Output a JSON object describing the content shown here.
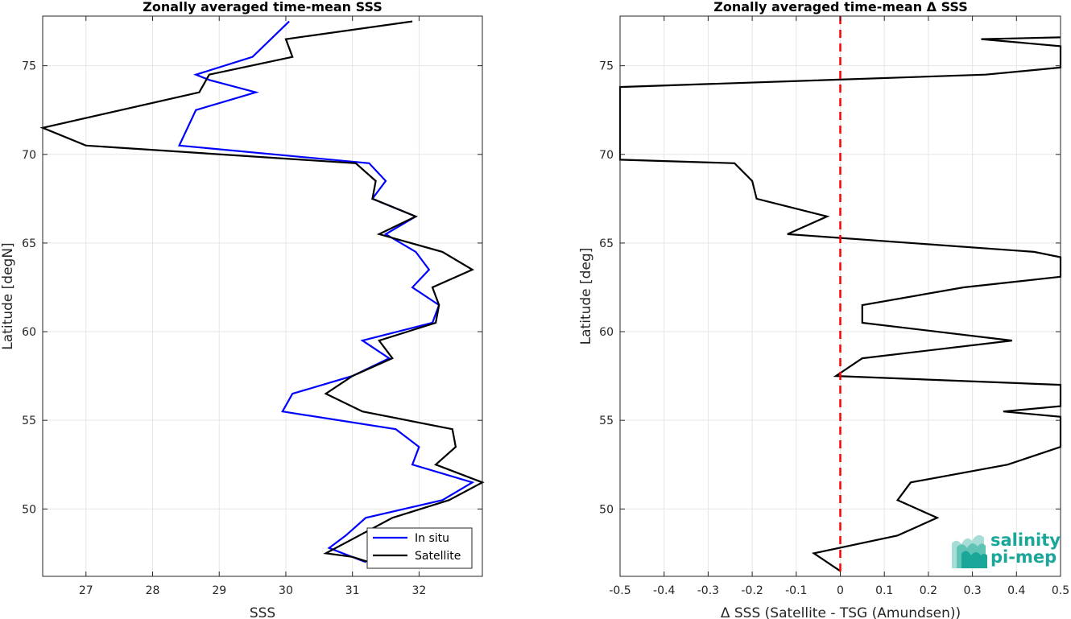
{
  "chart_data": [
    {
      "type": "line",
      "title": "Zonally averaged time-mean SSS",
      "xlabel": "SSS",
      "ylabel": "Latitude [degN]",
      "xlim": [
        26.35,
        32.95
      ],
      "ylim": [
        46.2,
        77.8
      ],
      "xticks": [
        27,
        28,
        29,
        30,
        31,
        32
      ],
      "yticks": [
        50,
        55,
        60,
        65,
        70,
        75
      ],
      "grid": true,
      "legend": "bottom-right",
      "series": [
        {
          "name": "In situ",
          "color": "#0000ff",
          "points": [
            [
              31.2,
              47.0
            ],
            [
              30.65,
              47.8
            ],
            [
              30.9,
              48.5
            ],
            [
              31.2,
              49.5
            ],
            [
              32.35,
              50.5
            ],
            [
              32.8,
              51.5
            ],
            [
              31.9,
              52.5
            ],
            [
              32.0,
              53.5
            ],
            [
              31.65,
              54.5
            ],
            [
              29.95,
              55.5
            ],
            [
              30.1,
              56.5
            ],
            [
              31.0,
              57.5
            ],
            [
              31.55,
              58.5
            ],
            [
              31.15,
              59.5
            ],
            [
              32.2,
              60.5
            ],
            [
              32.3,
              61.5
            ],
            [
              31.9,
              62.5
            ],
            [
              32.15,
              63.5
            ],
            [
              31.95,
              64.5
            ],
            [
              31.5,
              65.5
            ],
            [
              31.95,
              66.5
            ],
            [
              31.3,
              67.5
            ],
            [
              31.5,
              68.5
            ],
            [
              31.25,
              69.5
            ],
            [
              28.4,
              70.5
            ],
            [
              28.65,
              72.5
            ],
            [
              29.55,
              73.5
            ],
            [
              28.85,
              74.2
            ],
            [
              28.65,
              74.5
            ],
            [
              29.5,
              75.5
            ],
            [
              30.05,
              77.5
            ]
          ]
        },
        {
          "name": "Satellite",
          "color": "#000000",
          "points": [
            [
              31.25,
              47.0
            ],
            [
              31.0,
              47.3
            ],
            [
              30.6,
              47.5
            ],
            [
              31.1,
              48.5
            ],
            [
              31.6,
              49.5
            ],
            [
              32.45,
              50.5
            ],
            [
              32.95,
              51.5
            ],
            [
              32.25,
              52.5
            ],
            [
              32.55,
              53.5
            ],
            [
              32.5,
              54.5
            ],
            [
              31.15,
              55.5
            ],
            [
              30.6,
              56.5
            ],
            [
              31.0,
              57.5
            ],
            [
              31.6,
              58.5
            ],
            [
              31.4,
              59.5
            ],
            [
              32.25,
              60.5
            ],
            [
              32.3,
              61.5
            ],
            [
              32.2,
              62.5
            ],
            [
              32.8,
              63.5
            ],
            [
              32.35,
              64.5
            ],
            [
              31.4,
              65.5
            ],
            [
              31.95,
              66.5
            ],
            [
              31.3,
              67.5
            ],
            [
              31.35,
              68.5
            ],
            [
              31.05,
              69.5
            ],
            [
              27.0,
              70.5
            ],
            [
              26.35,
              71.5
            ],
            [
              28.7,
              73.5
            ],
            [
              28.85,
              74.5
            ],
            [
              30.1,
              75.5
            ],
            [
              30.0,
              76.5
            ],
            [
              31.9,
              77.5
            ]
          ]
        }
      ]
    },
    {
      "type": "line",
      "title": "Zonally averaged time-mean Δ SSS",
      "xlabel": "Δ SSS (Satellite - TSG (Amundsen))",
      "ylabel": "Latitude [deg]",
      "xlim": [
        -0.5,
        0.5
      ],
      "ylim": [
        46.2,
        77.8
      ],
      "xticks": [
        -0.5,
        -0.4,
        -0.3,
        -0.2,
        -0.1,
        0,
        0.1,
        0.2,
        0.3,
        0.4,
        0.5
      ],
      "xtick_labels": [
        "-0.5",
        "-0.4",
        "-0.3",
        "-0.2",
        "-0.1",
        "0",
        "0.1",
        "0.2",
        "0.3",
        "0.4",
        "0.5"
      ],
      "yticks": [
        50,
        55,
        60,
        65,
        70,
        75
      ],
      "grid": true,
      "reference_line": {
        "x": 0,
        "color": "#ff0000",
        "style": "dashed"
      },
      "series": [
        {
          "name": "",
          "color": "#000000",
          "points": [
            [
              0.0,
              46.5
            ],
            [
              -0.06,
              47.5
            ],
            [
              0.13,
              48.5
            ],
            [
              0.22,
              49.5
            ],
            [
              0.13,
              50.5
            ],
            [
              0.16,
              51.5
            ],
            [
              0.38,
              52.5
            ],
            [
              0.5,
              53.5
            ],
            [
              0.5,
              55.2
            ],
            [
              0.37,
              55.5
            ],
            [
              0.5,
              55.8
            ],
            [
              0.5,
              57.0
            ],
            [
              -0.01,
              57.5
            ],
            [
              0.05,
              58.5
            ],
            [
              0.39,
              59.5
            ],
            [
              0.05,
              60.5
            ],
            [
              0.05,
              61.5
            ],
            [
              0.28,
              62.5
            ],
            [
              0.5,
              63.1
            ],
            [
              0.5,
              64.2
            ],
            [
              0.44,
              64.5
            ],
            [
              -0.12,
              65.5
            ],
            [
              -0.03,
              66.5
            ],
            [
              -0.19,
              67.5
            ],
            [
              -0.2,
              68.5
            ],
            [
              -0.24,
              69.5
            ],
            [
              -0.5,
              69.7
            ],
            [
              -0.5,
              73.8
            ],
            [
              0.33,
              74.5
            ],
            [
              0.5,
              74.9
            ],
            [
              0.5,
              76.1
            ],
            [
              0.32,
              76.5
            ],
            [
              0.5,
              76.6
            ]
          ]
        }
      ],
      "logo": {
        "line1": "salinity",
        "line2": "pi-mep",
        "color": "#1aa79a"
      }
    }
  ]
}
